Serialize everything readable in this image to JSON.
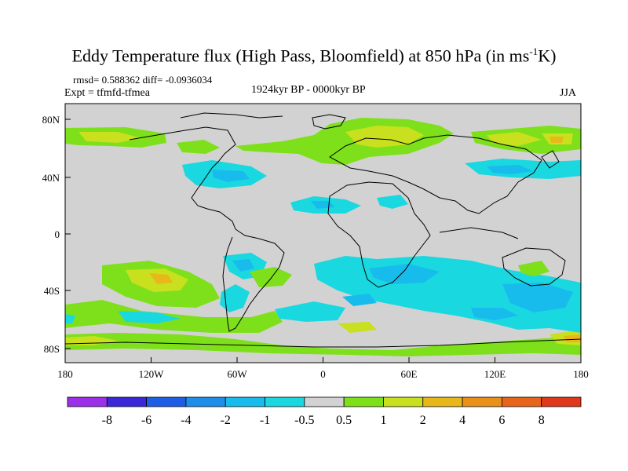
{
  "title": {
    "main": "Eddy Temperature flux (High Pass, Bloomfield) at 850 hPa (in ms",
    "sup": "-1",
    "tail": "K)"
  },
  "stats": "rmsd= 0.588362 diff= -0.0936034",
  "experiment": "Expt = tfmfd-tfmea",
  "period": "1924kyr BP - 0000kyr BP",
  "season": "JJA",
  "axes": {
    "y_ticks": [
      "80N",
      "40N",
      "0",
      "40S",
      "80S"
    ],
    "x_ticks": [
      "180",
      "120W",
      "60W",
      "0",
      "60E",
      "120E",
      "180"
    ]
  },
  "colorbar": {
    "labels": [
      "-8",
      "-6",
      "-4",
      "-2",
      "-1",
      "-0.5",
      "0.5",
      "1",
      "2",
      "4",
      "6",
      "8"
    ],
    "colors": [
      "#9b30e8",
      "#3a28d8",
      "#1e5ee6",
      "#1f8ee8",
      "#18bcec",
      "#1ad8e0",
      "#d2d2d2",
      "#7ee01a",
      "#c8e01e",
      "#e8b81a",
      "#e8901a",
      "#e8641a",
      "#e0381a"
    ]
  },
  "colors": {
    "land_ocean_neutral": "#d2d2d2",
    "cyan": "#1ad8e0",
    "light_blue": "#18bcec",
    "green": "#7ee01a",
    "yellow_green": "#c8e01e",
    "orange": "#e8b81a"
  }
}
